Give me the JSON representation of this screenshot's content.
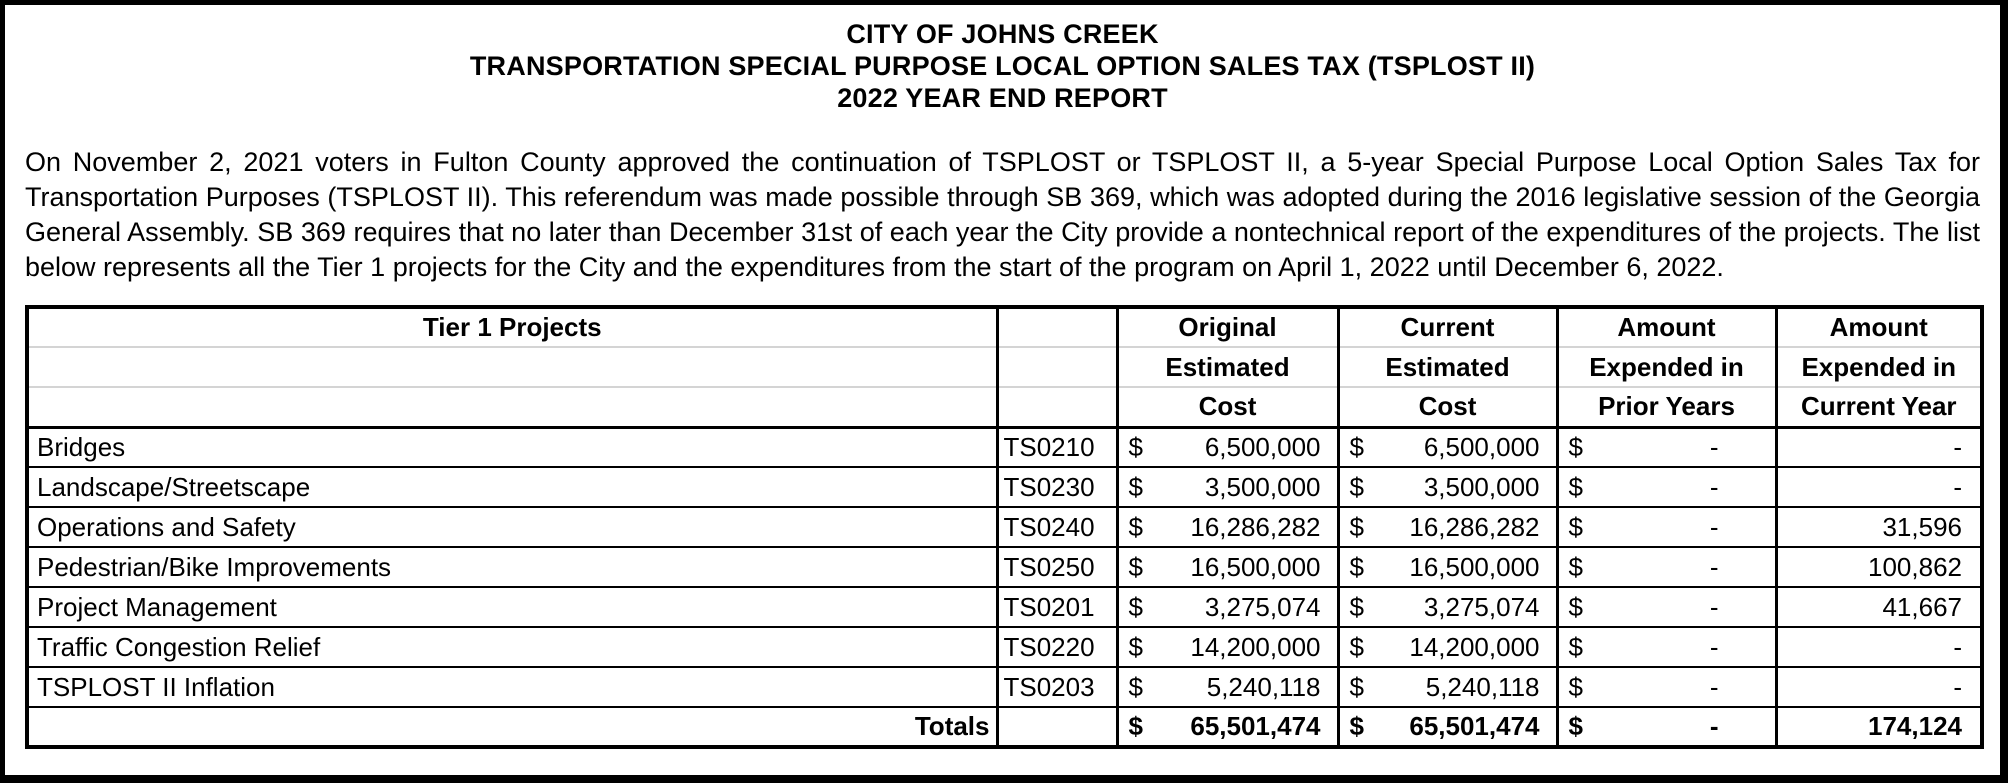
{
  "title": {
    "line1": "CITY OF JOHNS CREEK",
    "line2": "TRANSPORTATION SPECIAL PURPOSE LOCAL OPTION SALES TAX (TSPLOST II)",
    "line3": "2022 YEAR END REPORT"
  },
  "intro": "On November 2, 2021 voters in Fulton County approved the continuation of TSPLOST or TSPLOST II, a 5-year Special Purpose Local Option Sales Tax for Transportation Purposes (TSPLOST II). This referendum was made possible through SB 369, which was adopted during the 2016 legislative session of the Georgia General Assembly. SB 369 requires that no later than December 31st of each year the City provide a nontechnical report of the expenditures of the projects. The list below represents all the Tier 1 projects for the City and the expenditures from the start of the program on April 1, 2022 until December 6, 2022.",
  "table": {
    "currency": "$",
    "header": {
      "projects": "Tier 1 Projects",
      "col_original": [
        "Original",
        "Estimated",
        "Cost"
      ],
      "col_current": [
        "Current",
        "Estimated",
        "Cost"
      ],
      "col_prior": [
        "Amount",
        "Expended in",
        "Prior Years"
      ],
      "col_current_year": [
        "Amount",
        "Expended in",
        "Current Year"
      ]
    },
    "rows": [
      {
        "name": "Bridges",
        "code": "TS0210",
        "original": "6,500,000",
        "current": "6,500,000",
        "prior": "-",
        "current_year": "-"
      },
      {
        "name": "Landscape/Streetscape",
        "code": "TS0230",
        "original": "3,500,000",
        "current": "3,500,000",
        "prior": "-",
        "current_year": "-"
      },
      {
        "name": "Operations and Safety",
        "code": "TS0240",
        "original": "16,286,282",
        "current": "16,286,282",
        "prior": "-",
        "current_year": "31,596"
      },
      {
        "name": "Pedestrian/Bike Improvements",
        "code": "TS0250",
        "original": "16,500,000",
        "current": "16,500,000",
        "prior": "-",
        "current_year": "100,862"
      },
      {
        "name": "Project Management",
        "code": "TS0201",
        "original": "3,275,074",
        "current": "3,275,074",
        "prior": "-",
        "current_year": "41,667"
      },
      {
        "name": "Traffic Congestion Relief",
        "code": "TS0220",
        "original": "14,200,000",
        "current": "14,200,000",
        "prior": "-",
        "current_year": "-"
      },
      {
        "name": "TSPLOST II Inflation",
        "code": "TS0203",
        "original": "5,240,118",
        "current": "5,240,118",
        "prior": "-",
        "current_year": "-"
      }
    ],
    "totals": {
      "label": "Totals",
      "original": "65,501,474",
      "current": "65,501,474",
      "prior": "-",
      "current_year": "174,124"
    }
  },
  "colors": {
    "border": "#000000",
    "header_gridlines": "#d4d4d4",
    "background": "#ffffff",
    "text": "#000000"
  }
}
